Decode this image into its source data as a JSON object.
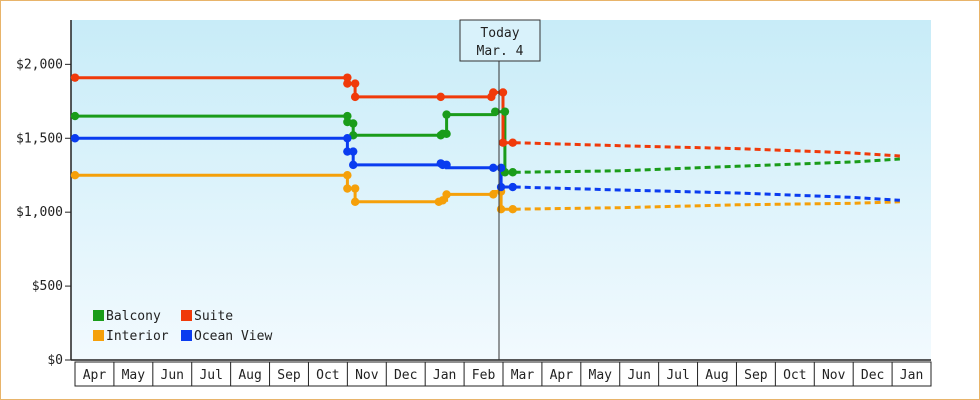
{
  "chart_data": {
    "type": "line",
    "today_marker": {
      "line1": "Today",
      "line2": "Mar. 4"
    },
    "x_months": [
      "Apr",
      "May",
      "Jun",
      "Jul",
      "Aug",
      "Sep",
      "Oct",
      "Nov",
      "Dec",
      "Jan",
      "Feb",
      "Mar",
      "Apr",
      "May",
      "Jun",
      "Jul",
      "Aug",
      "Sep",
      "Oct",
      "Nov",
      "Dec",
      "Jan"
    ],
    "y_ticks": [
      "$0",
      "$500",
      "$1,000",
      "$1,500",
      "$2,000"
    ],
    "ylim": [
      0,
      2300
    ],
    "grid": false,
    "legend_position": "bottom-left",
    "series": [
      {
        "name": "Balcony",
        "color": "#1a9c1a",
        "history": [
          [
            0,
            1650
          ],
          [
            7.0,
            1650
          ],
          [
            7.0,
            1600
          ],
          [
            7.15,
            1600
          ],
          [
            7.15,
            1520
          ],
          [
            9.4,
            1520
          ],
          [
            9.4,
            1530
          ],
          [
            9.55,
            1530
          ],
          [
            9.55,
            1660
          ],
          [
            10.8,
            1660
          ],
          [
            10.8,
            1680
          ],
          [
            11.05,
            1680
          ],
          [
            11.05,
            1270
          ],
          [
            11.3,
            1270
          ]
        ],
        "forecast": [
          [
            11.3,
            1270
          ],
          [
            14,
            1280
          ],
          [
            17,
            1310
          ],
          [
            20,
            1340
          ],
          [
            21.2,
            1360
          ]
        ]
      },
      {
        "name": "Suite",
        "color": "#f03a0a",
        "history": [
          [
            0,
            1910
          ],
          [
            7.0,
            1910
          ],
          [
            7.0,
            1870
          ],
          [
            7.2,
            1870
          ],
          [
            7.2,
            1780
          ],
          [
            9.4,
            1780
          ],
          [
            9.4,
            1780
          ],
          [
            10.7,
            1780
          ],
          [
            10.7,
            1810
          ],
          [
            11.0,
            1810
          ],
          [
            11.0,
            1470
          ],
          [
            11.3,
            1470
          ]
        ],
        "forecast": [
          [
            11.3,
            1470
          ],
          [
            14,
            1450
          ],
          [
            17,
            1430
          ],
          [
            20,
            1400
          ],
          [
            21.2,
            1380
          ]
        ]
      },
      {
        "name": "Interior",
        "color": "#f5a00a",
        "history": [
          [
            0,
            1250
          ],
          [
            7.0,
            1250
          ],
          [
            7.0,
            1160
          ],
          [
            7.2,
            1160
          ],
          [
            7.2,
            1070
          ],
          [
            9.35,
            1070
          ],
          [
            9.35,
            1080
          ],
          [
            9.55,
            1080
          ],
          [
            9.55,
            1120
          ],
          [
            10.75,
            1120
          ],
          [
            10.75,
            1140
          ],
          [
            10.95,
            1140
          ],
          [
            10.95,
            1020
          ],
          [
            11.3,
            1020
          ]
        ],
        "forecast": [
          [
            11.3,
            1020
          ],
          [
            14,
            1030
          ],
          [
            17,
            1050
          ],
          [
            20,
            1060
          ],
          [
            21.2,
            1070
          ]
        ]
      },
      {
        "name": "Ocean View",
        "color": "#0a3cf0",
        "history": [
          [
            0,
            1500
          ],
          [
            7.0,
            1500
          ],
          [
            7.0,
            1410
          ],
          [
            7.15,
            1410
          ],
          [
            7.15,
            1320
          ],
          [
            9.4,
            1320
          ],
          [
            9.4,
            1320
          ],
          [
            9.55,
            1320
          ],
          [
            9.55,
            1300
          ],
          [
            10.75,
            1300
          ],
          [
            10.75,
            1300
          ],
          [
            10.95,
            1300
          ],
          [
            10.95,
            1170
          ],
          [
            11.3,
            1170
          ]
        ],
        "forecast": [
          [
            11.3,
            1170
          ],
          [
            14,
            1150
          ],
          [
            17,
            1130
          ],
          [
            20,
            1100
          ],
          [
            21.2,
            1080
          ]
        ]
      }
    ],
    "markers": [
      {
        "series": 0,
        "points": [
          [
            0,
            1650
          ],
          [
            7.0,
            1650
          ],
          [
            7.0,
            1610
          ],
          [
            7.15,
            1600
          ],
          [
            7.15,
            1520
          ],
          [
            9.4,
            1520
          ],
          [
            9.45,
            1530
          ],
          [
            9.55,
            1530
          ],
          [
            9.55,
            1660
          ],
          [
            10.8,
            1680
          ],
          [
            11.05,
            1680
          ],
          [
            11.05,
            1270
          ],
          [
            11.25,
            1270
          ]
        ]
      },
      {
        "series": 1,
        "points": [
          [
            0,
            1910
          ],
          [
            7.0,
            1910
          ],
          [
            7.0,
            1870
          ],
          [
            7.2,
            1870
          ],
          [
            7.2,
            1780
          ],
          [
            9.4,
            1780
          ],
          [
            10.7,
            1780
          ],
          [
            10.75,
            1810
          ],
          [
            11.0,
            1810
          ],
          [
            11.0,
            1470
          ],
          [
            11.25,
            1470
          ]
        ]
      },
      {
        "series": 2,
        "points": [
          [
            0,
            1250
          ],
          [
            7.0,
            1250
          ],
          [
            7.0,
            1160
          ],
          [
            7.2,
            1160
          ],
          [
            7.2,
            1070
          ],
          [
            9.35,
            1070
          ],
          [
            9.45,
            1080
          ],
          [
            9.55,
            1120
          ],
          [
            10.75,
            1120
          ],
          [
            10.95,
            1140
          ],
          [
            10.95,
            1020
          ],
          [
            11.25,
            1020
          ]
        ]
      },
      {
        "series": 3,
        "points": [
          [
            0,
            1500
          ],
          [
            7.0,
            1500
          ],
          [
            7.0,
            1410
          ],
          [
            7.15,
            1410
          ],
          [
            7.15,
            1320
          ],
          [
            9.4,
            1330
          ],
          [
            9.45,
            1320
          ],
          [
            9.55,
            1320
          ],
          [
            10.75,
            1300
          ],
          [
            10.95,
            1300
          ],
          [
            10.95,
            1170
          ],
          [
            11.25,
            1170
          ]
        ]
      }
    ]
  }
}
